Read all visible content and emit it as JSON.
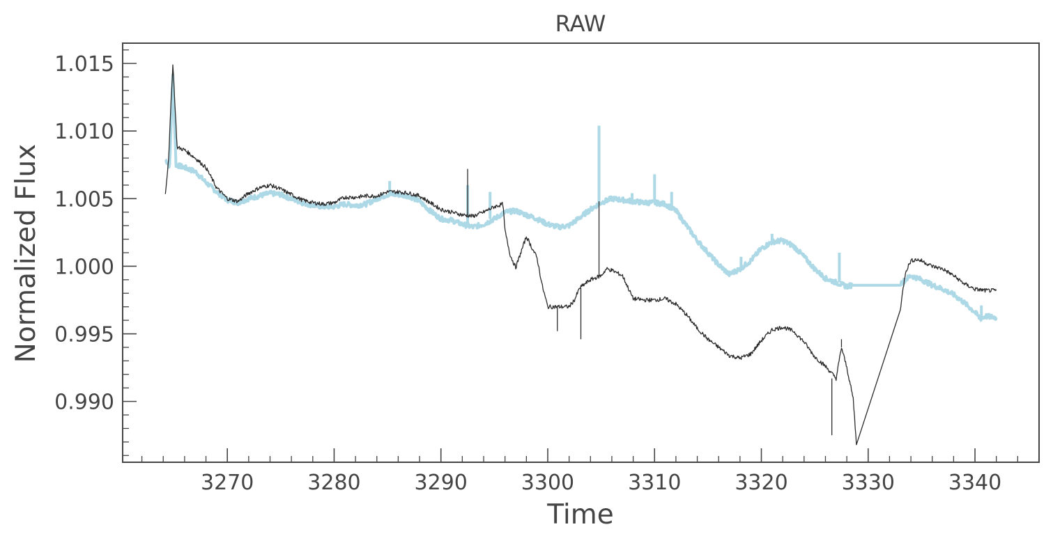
{
  "chart_data": {
    "type": "line",
    "title": "RAW",
    "xlabel": "Time",
    "ylabel": "Normalized Flux",
    "xlim": [
      3260.2,
      3346.0
    ],
    "ylim": [
      0.9855,
      1.0165
    ],
    "xticks": [
      3270,
      3280,
      3290,
      3300,
      3310,
      3320,
      3330,
      3340
    ],
    "xtick_labels": [
      "3270",
      "3280",
      "3290",
      "3300",
      "3310",
      "3320",
      "3330",
      "3340"
    ],
    "yticks": [
      0.99,
      0.995,
      1.0,
      1.005,
      1.01,
      1.015
    ],
    "ytick_labels": [
      "0.990",
      "0.995",
      "1.000",
      "1.005",
      "1.010",
      "1.015"
    ],
    "grid": false,
    "series": [
      {
        "color": "#add8e6",
        "x": [
          3264.2,
          3264.6,
          3264.9,
          3265.2,
          3266.0,
          3267.0,
          3268.0,
          3269.0,
          3270.0,
          3271.0,
          3272.0,
          3273.0,
          3274.0,
          3275.0,
          3276.0,
          3277.0,
          3278.0,
          3279.0,
          3280.0,
          3281.0,
          3282.0,
          3283.0,
          3284.0,
          3285.0,
          3286.0,
          3287.0,
          3288.0,
          3289.0,
          3290.0,
          3291.0,
          3292.0,
          3293.0,
          3294.0,
          3295.0,
          3296.0,
          3297.0,
          3298.0,
          3299.0,
          3300.0,
          3301.0,
          3302.0,
          3303.0,
          3304.0,
          3305.0,
          3306.0,
          3307.0,
          3308.0,
          3309.0,
          3310.0,
          3311.0,
          3312.0,
          3313.0,
          3314.0,
          3315.0,
          3316.0,
          3317.0,
          3318.0,
          3319.0,
          3320.0,
          3321.0,
          3322.0,
          3323.0,
          3324.0,
          3325.0,
          3326.0,
          3327.0,
          3328.0,
          3328.5,
          3333.0,
          3334.0,
          3335.0,
          3336.0,
          3337.0,
          3338.0,
          3339.0,
          3340.0,
          3340.5,
          3341.0,
          3342.0
        ],
        "values": [
          1.0079,
          1.0074,
          1.0141,
          1.0075,
          1.0073,
          1.007,
          1.0062,
          1.0055,
          1.0049,
          1.0047,
          1.005,
          1.0052,
          1.0054,
          1.0053,
          1.005,
          1.0047,
          1.0045,
          1.0044,
          1.0044,
          1.0046,
          1.0045,
          1.0046,
          1.005,
          1.0053,
          1.0053,
          1.0052,
          1.0048,
          1.0041,
          1.0035,
          1.0034,
          1.0031,
          1.0029,
          1.0031,
          1.0035,
          1.004,
          1.0041,
          1.0038,
          1.0035,
          1.0031,
          1.0029,
          1.003,
          1.0036,
          1.0042,
          1.0047,
          1.005,
          1.0049,
          1.0048,
          1.0047,
          1.0047,
          1.0046,
          1.0041,
          1.003,
          1.0019,
          1.001,
          1.0001,
          0.9994,
          0.9998,
          1.0004,
          1.0013,
          1.0018,
          1.0019,
          1.0015,
          1.0007,
          0.9998,
          0.9991,
          0.9988,
          0.9985,
          0.9986,
          0.9987,
          0.9993,
          0.999,
          0.9986,
          0.9983,
          0.9979,
          0.9973,
          0.9966,
          0.9961,
          0.9963,
          0.9962
        ],
        "spikes": [
          [
            3264.9,
            1.0142
          ],
          [
            3285.2,
            1.0063
          ],
          [
            3292.5,
            1.006
          ],
          [
            3294.6,
            1.0055
          ],
          [
            3304.8,
            1.0104
          ],
          [
            3307.9,
            1.0054
          ],
          [
            3310.0,
            1.0068
          ],
          [
            3311.6,
            1.0055
          ],
          [
            3318.1,
            1.0007
          ],
          [
            3321.0,
            1.0024
          ],
          [
            3327.3,
            1.001
          ],
          [
            3340.6,
            0.9971
          ]
        ]
      },
      {
        "color": "#2b2b2b",
        "x": [
          3264.2,
          3264.5,
          3264.9,
          3265.3,
          3266.0,
          3267.0,
          3268.0,
          3269.0,
          3270.0,
          3271.0,
          3272.0,
          3273.0,
          3274.0,
          3275.0,
          3276.0,
          3277.0,
          3278.0,
          3279.0,
          3280.0,
          3281.0,
          3282.0,
          3283.0,
          3284.0,
          3285.0,
          3286.0,
          3287.0,
          3288.0,
          3289.0,
          3290.0,
          3291.0,
          3292.0,
          3293.0,
          3294.0,
          3295.0,
          3295.8,
          3296.0,
          3296.5,
          3297.0,
          3298.0,
          3298.5,
          3299.0,
          3299.5,
          3300.0,
          3300.5,
          3301.0,
          3302.0,
          3302.5,
          3303.0,
          3303.5,
          3304.0,
          3305.0,
          3305.5,
          3306.0,
          3307.0,
          3308.0,
          3309.0,
          3310.0,
          3311.0,
          3312.0,
          3313.0,
          3314.0,
          3315.0,
          3316.0,
          3317.0,
          3318.0,
          3319.0,
          3320.0,
          3321.0,
          3322.0,
          3323.0,
          3324.0,
          3325.0,
          3326.0,
          3327.0,
          3327.5,
          3328.0,
          3328.6,
          3328.9,
          3333.0,
          3333.5,
          3334.0,
          3334.5,
          3335.0,
          3336.0,
          3337.0,
          3338.0,
          3339.0,
          3340.0,
          3341.0,
          3342.0
        ],
        "values": [
          1.0053,
          1.008,
          1.015,
          1.0088,
          1.0086,
          1.008,
          1.0073,
          1.0058,
          1.005,
          1.0048,
          1.0054,
          1.0058,
          1.006,
          1.0057,
          1.0053,
          1.0049,
          1.0047,
          1.0046,
          1.0047,
          1.0051,
          1.0051,
          1.0052,
          1.0052,
          1.0055,
          1.0055,
          1.0054,
          1.0052,
          1.0047,
          1.0042,
          1.004,
          1.0038,
          1.0037,
          1.004,
          1.0044,
          1.0046,
          1.0026,
          1.0008,
          0.9999,
          1.0022,
          1.0014,
          1.0006,
          0.9985,
          0.997,
          0.997,
          0.997,
          0.997,
          0.9975,
          0.9984,
          0.9987,
          0.999,
          0.9993,
          0.9998,
          0.9997,
          0.9993,
          0.9976,
          0.9975,
          0.9975,
          0.9976,
          0.9972,
          0.9964,
          0.9954,
          0.9946,
          0.994,
          0.9934,
          0.9932,
          0.9935,
          0.9945,
          0.9953,
          0.9955,
          0.9952,
          0.9944,
          0.9933,
          0.9926,
          0.9917,
          0.994,
          0.9925,
          0.9902,
          0.9868,
          0.9968,
          0.9996,
          1.0004,
          1.0005,
          1.0004,
          1.0,
          0.9998,
          0.9993,
          0.9987,
          0.9983,
          0.9982,
          0.9982
        ],
        "spikes": [
          [
            3264.9,
            1.015
          ],
          [
            3292.5,
            1.0072
          ],
          [
            3304.8,
            1.0048
          ],
          [
            3300.9,
            0.9952
          ],
          [
            3303.1,
            0.9946
          ],
          [
            3326.6,
            0.9875
          ],
          [
            3327.5,
            0.9946
          ],
          [
            3329.0,
            0.9868
          ]
        ]
      }
    ]
  }
}
